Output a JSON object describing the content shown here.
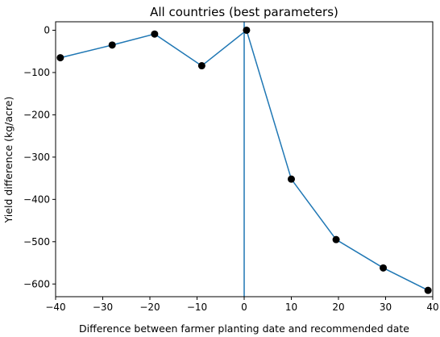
{
  "chart_data": {
    "type": "line",
    "title": "All countries (best parameters)",
    "xlabel": "Difference between farmer planting date and recommended date",
    "ylabel": "Yield difference (kg/acre)",
    "xlim": [
      -40,
      40
    ],
    "ylim": [
      -630,
      20
    ],
    "xticks": [
      -40,
      -30,
      -20,
      -10,
      0,
      10,
      20,
      30,
      40
    ],
    "yticks": [
      0,
      -100,
      -200,
      -300,
      -400,
      -500,
      -600
    ],
    "xtick_labels": [
      "−40",
      "−30",
      "−20",
      "−10",
      "0",
      "10",
      "20",
      "30",
      "40"
    ],
    "ytick_labels": [
      "0",
      "−100",
      "−200",
      "−300",
      "−400",
      "−500",
      "−600"
    ],
    "vertical_line_x": 0,
    "grid": false,
    "line_color": "#1f77b4",
    "marker_color": "#000000",
    "series": [
      {
        "x": [
          -39,
          -28,
          -19,
          -9,
          0.5,
          10,
          19.5,
          29.5,
          39
        ],
        "y": [
          -65,
          -35,
          -9,
          -84,
          0,
          -352,
          -495,
          -562,
          -615
        ]
      }
    ]
  }
}
